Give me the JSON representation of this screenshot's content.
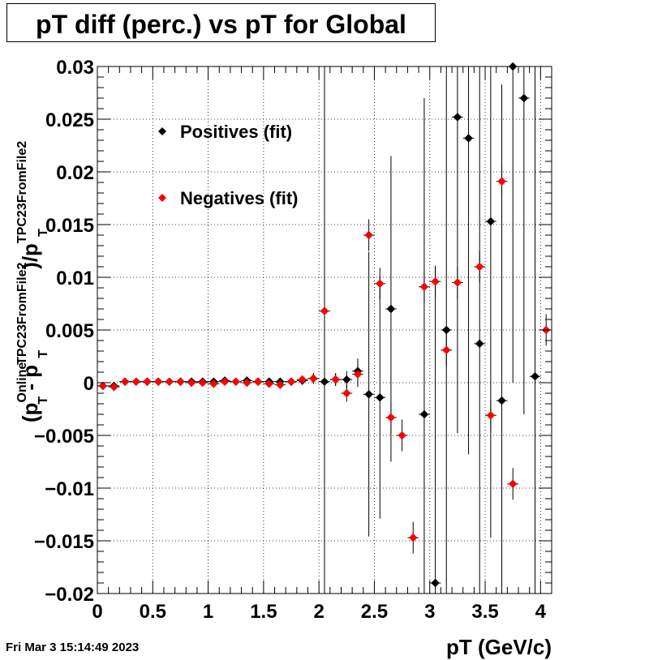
{
  "title": "pT diff (perc.) vs pT for Global",
  "timestamp": "Fri Mar  3 15:14:49 2023",
  "chart_data": {
    "type": "scatter",
    "xlabel": "pT (GeV/c)",
    "ylabel": {
      "open": "(p",
      "sup1": "Online",
      "sub1": "T",
      "minus": " - p",
      "sup2": "TPC23FromFile2",
      "sub2": "T",
      "close": ")/p",
      "sup3": "TPC23FromFile2",
      "sub3": "T"
    },
    "xlim": [
      0,
      4.1
    ],
    "ylim": [
      -0.02,
      0.03
    ],
    "xticks": [
      "0",
      "0.5",
      "1",
      "1.5",
      "2",
      "2.5",
      "3",
      "3.5",
      "4"
    ],
    "yticks": [
      "0.03",
      "0.025",
      "0.02",
      "0.015",
      "0.01",
      "0.005",
      "0",
      "−0.005",
      "−0.01",
      "−0.015",
      "−0.02"
    ],
    "grid": true,
    "legend_position": "top-left",
    "series": [
      {
        "name": "Positives (fit)",
        "color": "#000000",
        "x": [
          0.05,
          0.15,
          0.25,
          0.35,
          0.45,
          0.55,
          0.65,
          0.75,
          0.85,
          0.95,
          1.05,
          1.15,
          1.25,
          1.35,
          1.45,
          1.55,
          1.65,
          1.75,
          1.85,
          1.95,
          2.05,
          2.15,
          2.25,
          2.35,
          2.45,
          2.55,
          2.65,
          2.75,
          2.85,
          2.95,
          3.05,
          3.15,
          3.25,
          3.35,
          3.45,
          3.55,
          3.65,
          3.75,
          3.85,
          3.95,
          4.05
        ],
        "y": [
          -0.0003,
          -0.0003,
          0.0001,
          0.0001,
          0.0001,
          0.0001,
          0.0001,
          0.0001,
          0.0001,
          0.0001,
          0.0001,
          0.0002,
          0.0001,
          0.0002,
          0.0001,
          0.0001,
          0.0001,
          0.0001,
          0.0002,
          0.0004,
          0.0001,
          0.0003,
          0.0003,
          0.0011,
          -0.0011,
          -0.0014,
          0.007,
          null,
          null,
          -0.003,
          -0.019,
          0.005,
          0.0252,
          0.0232,
          0.0037,
          0.0153,
          -0.0017,
          0.03,
          0.027,
          0.0006,
          null
        ],
        "err": [
          0.0002,
          0.0002,
          0.0002,
          0.0002,
          0.0002,
          0.0002,
          0.0002,
          0.0002,
          0.0002,
          0.0002,
          0.0002,
          0.0002,
          0.0002,
          0.0003,
          0.0003,
          0.0003,
          0.0003,
          0.0003,
          0.0004,
          0.0005,
          0.03,
          0.0006,
          0.0008,
          0.0012,
          0.0135,
          0.0115,
          0.0145,
          0,
          0,
          0.03,
          0.03,
          0.03,
          0.03,
          0.03,
          0.03,
          0.03,
          0.03,
          0.03,
          0.03,
          0.03,
          0
        ]
      },
      {
        "name": "Negatives (fit)",
        "color": "#ff0000",
        "x": [
          0.05,
          0.15,
          0.25,
          0.35,
          0.45,
          0.55,
          0.65,
          0.75,
          0.85,
          0.95,
          1.05,
          1.15,
          1.25,
          1.35,
          1.45,
          1.55,
          1.65,
          1.75,
          1.85,
          1.95,
          2.05,
          2.15,
          2.25,
          2.35,
          2.45,
          2.55,
          2.65,
          2.75,
          2.85,
          2.95,
          3.05,
          3.15,
          3.25,
          3.35,
          3.45,
          3.55,
          3.65,
          3.75,
          3.85,
          3.95,
          4.05
        ],
        "y": [
          -0.0003,
          -0.0004,
          0.0001,
          0.0001,
          0.0001,
          0.0001,
          0.0001,
          0.0001,
          0.0,
          0.0,
          -0.0001,
          0.0001,
          0.0001,
          0.0,
          0.0001,
          -0.0001,
          -0.0002,
          0.0001,
          0.0003,
          0.0004,
          0.0068,
          0.0003,
          -0.001,
          0.0008,
          0.014,
          0.0094,
          -0.0033,
          -0.005,
          -0.0147,
          0.0091,
          0.0096,
          0.0031,
          0.0095,
          null,
          0.011,
          -0.0031,
          0.0191,
          -0.0096,
          null,
          null,
          0.005
        ],
        "err": [
          0.0002,
          0.0002,
          0.0002,
          0.0002,
          0.0002,
          0.0002,
          0.0002,
          0.0002,
          0.0002,
          0.0002,
          0.0002,
          0.0002,
          0.0002,
          0.0003,
          0.0003,
          0.0003,
          0.0003,
          0.0003,
          0.0004,
          0.0005,
          0.0006,
          0.0006,
          0.0008,
          0.0012,
          0.0015,
          0.0015,
          0.0015,
          0.0015,
          0.0015,
          0.0015,
          0.0015,
          0.0015,
          0.0015,
          0,
          0.0015,
          0.0015,
          0.0015,
          0.0015,
          0,
          0,
          0.0015
        ]
      }
    ]
  }
}
